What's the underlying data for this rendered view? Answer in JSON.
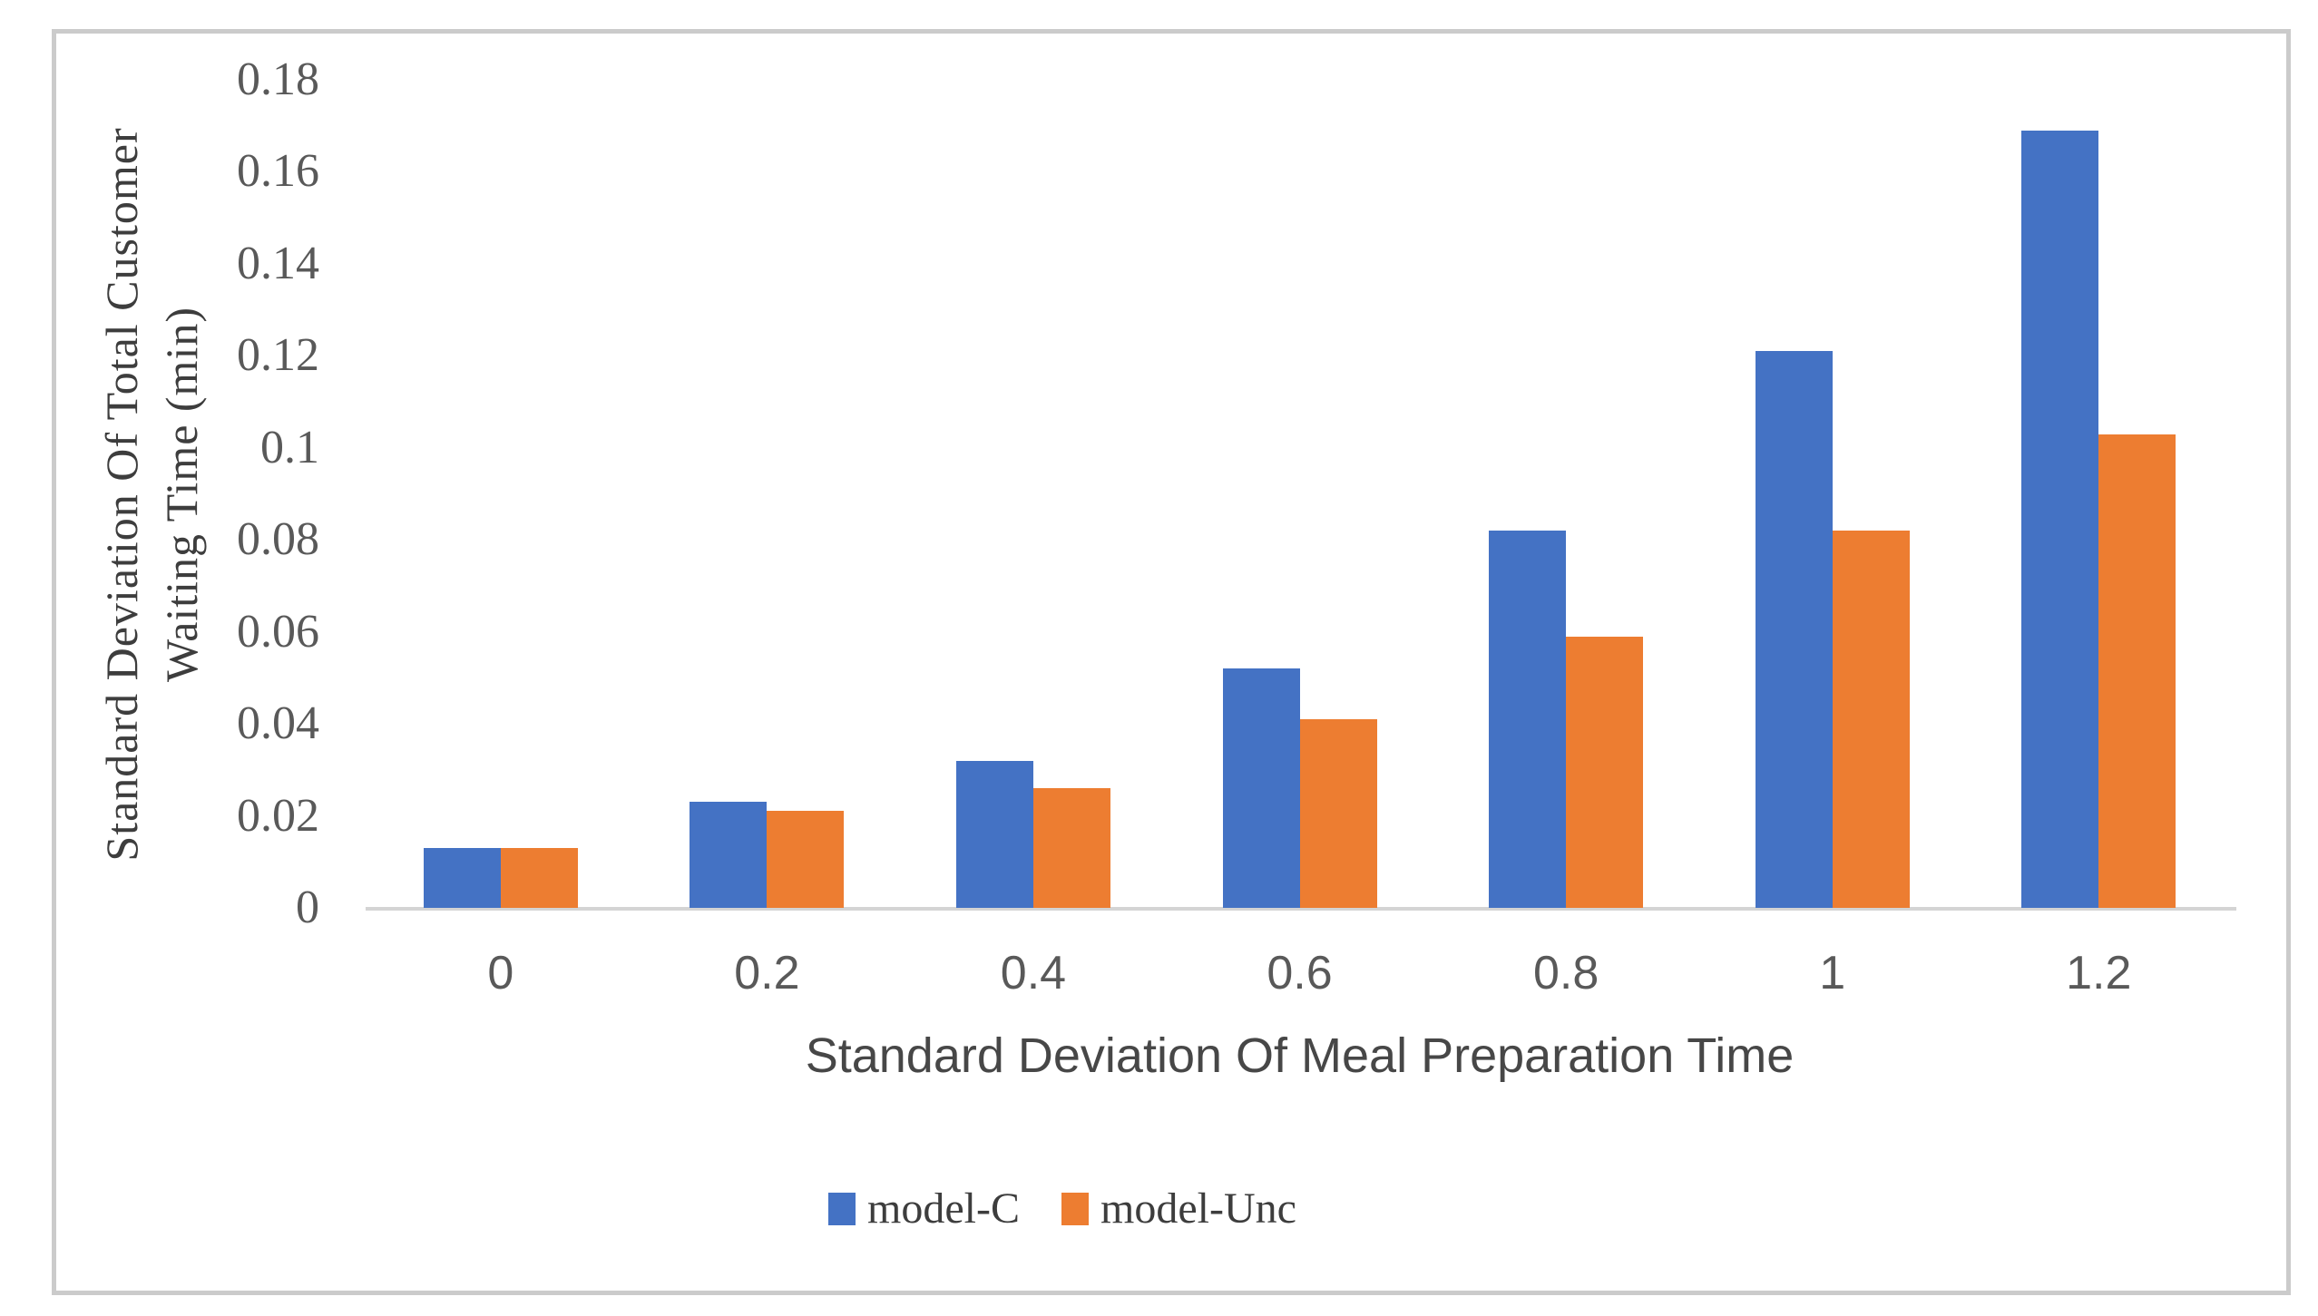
{
  "chart_data": {
    "type": "bar",
    "title": "",
    "xlabel": "Standard Deviation Of Meal Preparation Time",
    "ylabel_line1": "Standard Deviation Of  Total Customer",
    "ylabel_line2": "Waiting Time (min)",
    "categories": [
      "0",
      "0.2",
      "0.4",
      "0.6",
      "0.8",
      "1",
      "1.2"
    ],
    "series": [
      {
        "name": "model-C",
        "color": "#4472C4",
        "values": [
          0.013,
          0.023,
          0.032,
          0.052,
          0.082,
          0.121,
          0.169
        ]
      },
      {
        "name": "model-Unc",
        "color": "#ED7D31",
        "values": [
          0.013,
          0.021,
          0.026,
          0.041,
          0.059,
          0.082,
          0.103
        ]
      }
    ],
    "ylim": [
      0,
      0.18
    ],
    "y_ticks": [
      "0",
      "0.02",
      "0.04",
      "0.06",
      "0.08",
      "0.1",
      "0.12",
      "0.14",
      "0.16",
      "0.18"
    ],
    "grid": false,
    "legend_position": "bottom",
    "frame_border_color": "#cbcbcb",
    "axis_line_color": "#d4d4d4"
  }
}
